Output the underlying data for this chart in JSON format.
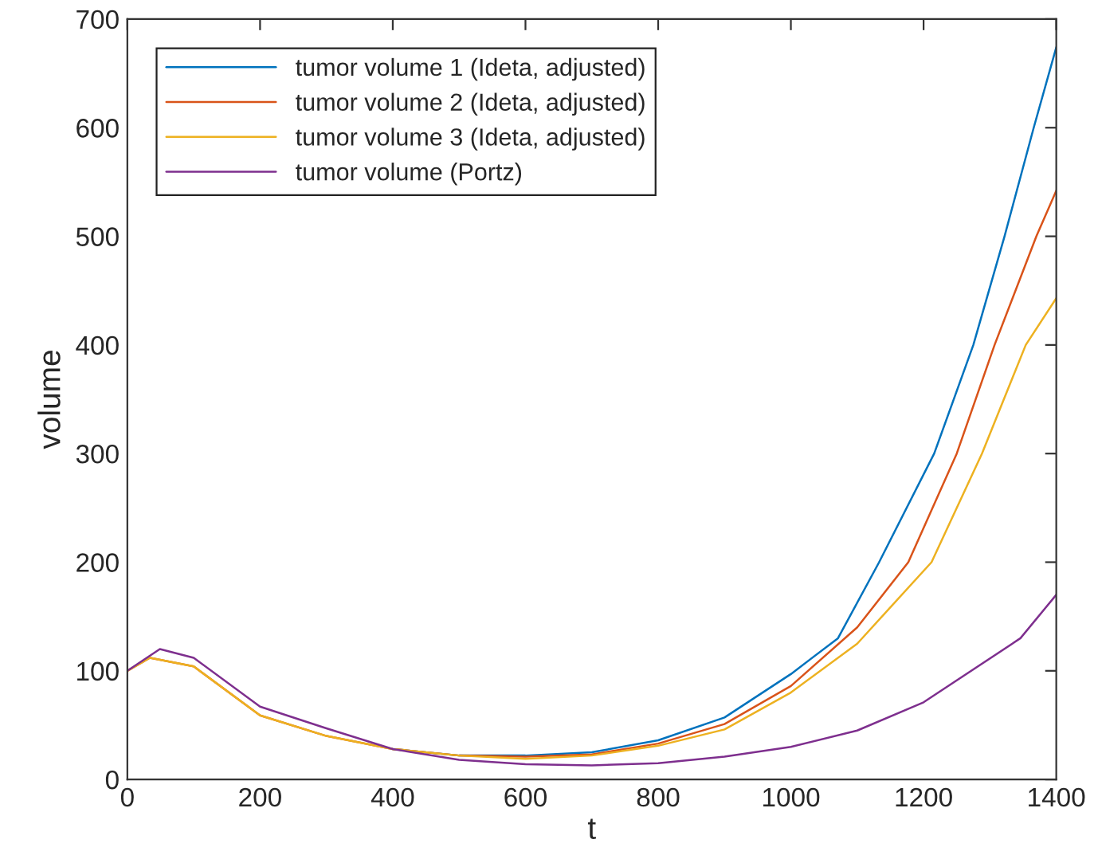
{
  "chart_data": {
    "type": "line",
    "xlabel": "t",
    "ylabel": "volume",
    "xlim": [
      0,
      1400
    ],
    "ylim": [
      0,
      700
    ],
    "xticks": [
      0,
      200,
      400,
      600,
      800,
      1000,
      1200,
      1400
    ],
    "yticks": [
      0,
      100,
      200,
      300,
      400,
      500,
      600,
      700
    ],
    "grid": false,
    "legend": "top left",
    "marker": "none",
    "line_style": "solid",
    "series": [
      {
        "name": "tumor volume 1 (Ideta, adjusted)",
        "color": "#0072bd",
        "x": [
          400,
          500,
          600,
          700,
          800,
          900,
          1000,
          1071,
          1133,
          1216,
          1275,
          1322,
          1366,
          1400
        ],
        "values": [
          28,
          22,
          22,
          25,
          36,
          57,
          97,
          130,
          200,
          300,
          400,
          500,
          600,
          674
        ]
      },
      {
        "name": "tumor volume 2 (Ideta, adjusted)",
        "color": "#d95319",
        "x": [
          0,
          34,
          100,
          200,
          300,
          400,
          500,
          600,
          700,
          800,
          900,
          1000,
          1100,
          1177,
          1250,
          1307,
          1370,
          1400
        ],
        "values": [
          100,
          112,
          104,
          59,
          40,
          28,
          22,
          21,
          23,
          33,
          51,
          86,
          140,
          200,
          300,
          400,
          500,
          542
        ]
      },
      {
        "name": "tumor volume 3 (Ideta, adjusted)",
        "color": "#edb120",
        "x": [
          0,
          34,
          100,
          200,
          300,
          400,
          500,
          600,
          700,
          800,
          900,
          1000,
          1100,
          1212,
          1288,
          1354,
          1400
        ],
        "values": [
          100,
          112,
          104,
          59,
          40,
          28,
          22,
          19,
          22,
          31,
          46,
          80,
          125,
          200,
          300,
          400,
          443
        ]
      },
      {
        "name": "tumor volume (Portz)",
        "color": "#7e2f8e",
        "x": [
          0,
          49,
          100,
          200,
          300,
          400,
          500,
          600,
          700,
          800,
          900,
          1000,
          1100,
          1200,
          1346,
          1400
        ],
        "values": [
          100,
          120,
          112,
          67,
          47,
          28,
          18,
          14,
          13,
          15,
          21,
          30,
          45,
          71,
          130,
          170
        ]
      }
    ]
  }
}
